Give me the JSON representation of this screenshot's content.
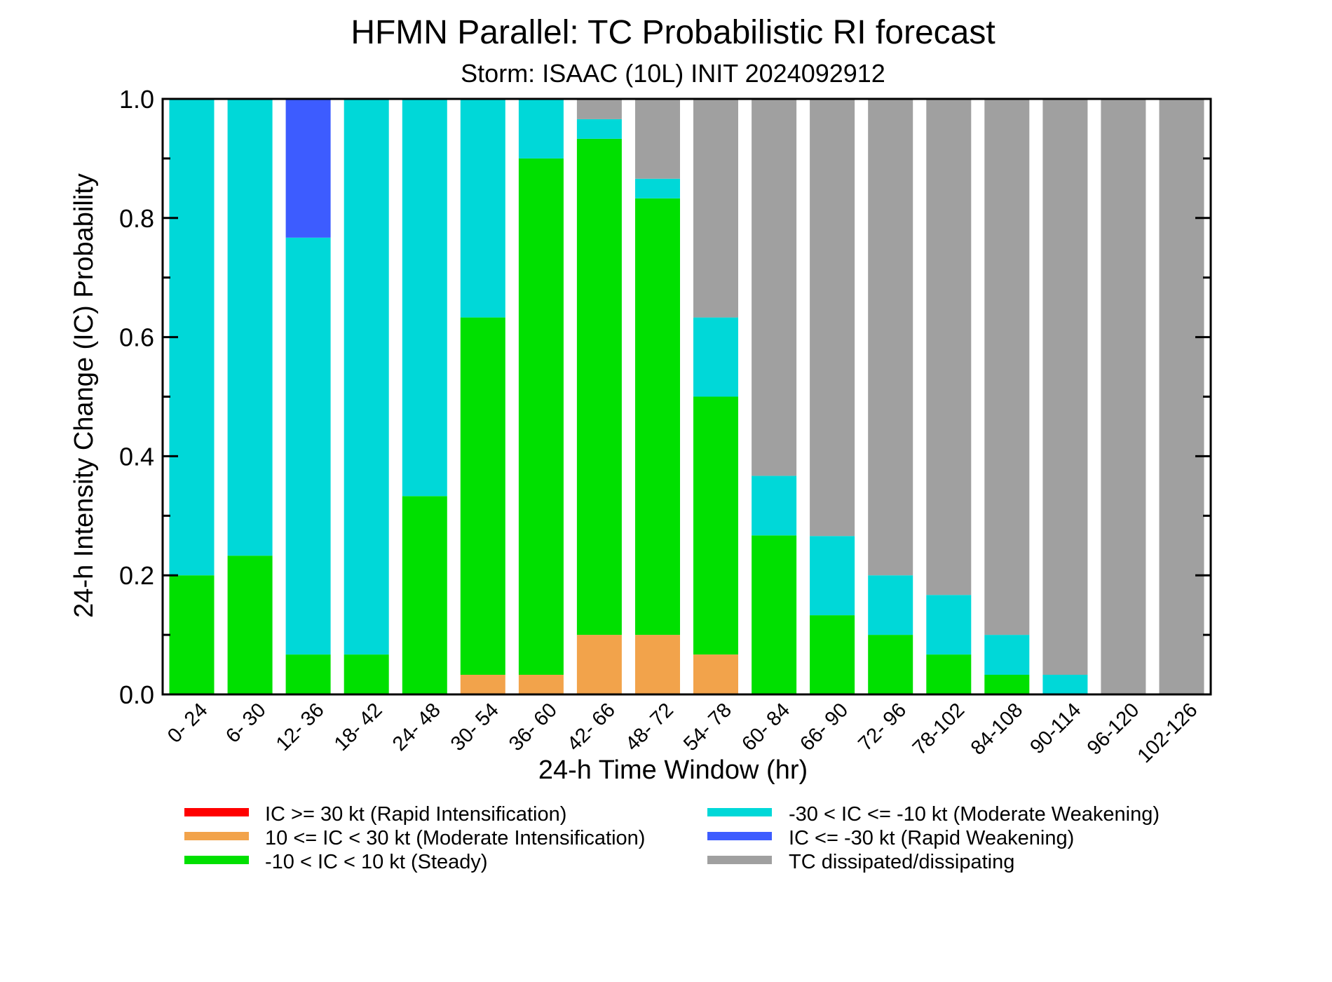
{
  "chart_data": {
    "type": "bar",
    "stacked": true,
    "title": "HFMN Parallel: TC Probabilistic RI forecast",
    "subtitle": "Storm: ISAAC (10L) INIT 2024092912",
    "xlabel": "24-h Time Window (hr)",
    "ylabel": "24-h Intensity Change (IC) Probability",
    "ylim": [
      0,
      1.0
    ],
    "yticks": [
      "0.0",
      "0.2",
      "0.4",
      "0.6",
      "0.8",
      "1.0"
    ],
    "categories": [
      "0- 24",
      "6- 30",
      "12- 36",
      "18- 42",
      "24- 48",
      "30- 54",
      "36- 60",
      "42- 66",
      "48- 72",
      "54- 78",
      "60- 84",
      "66- 90",
      "72- 96",
      "78-102",
      "84-108",
      "90-114",
      "96-120",
      "102-126"
    ],
    "series": [
      {
        "name": "IC >= 30 kt (Rapid Intensification)",
        "color": "#ff0000",
        "values": [
          0,
          0,
          0,
          0,
          0,
          0,
          0,
          0,
          0,
          0,
          0,
          0,
          0,
          0,
          0,
          0,
          0,
          0
        ]
      },
      {
        "name": "10 <= IC < 30 kt (Moderate Intensification)",
        "color": "#f2a34b",
        "values": [
          0,
          0,
          0,
          0,
          0,
          0.033,
          0.033,
          0.1,
          0.1,
          0.067,
          0,
          0,
          0,
          0,
          0,
          0,
          0,
          0
        ]
      },
      {
        "name": "-10 < IC < 10 kt (Steady)",
        "color": "#00e000",
        "values": [
          0.2,
          0.233,
          0.067,
          0.067,
          0.333,
          0.6,
          0.867,
          0.833,
          0.733,
          0.433,
          0.267,
          0.133,
          0.1,
          0.067,
          0.033,
          0,
          0,
          0
        ]
      },
      {
        "name": "-30 < IC <= -10 kt (Moderate Weakening)",
        "color": "#00d8d8",
        "values": [
          0.8,
          0.767,
          0.7,
          0.933,
          0.667,
          0.367,
          0.1,
          0.033,
          0.033,
          0.133,
          0.1,
          0.133,
          0.1,
          0.1,
          0.067,
          0.033,
          0,
          0
        ]
      },
      {
        "name": "IC <= -30 kt (Rapid Weakening)",
        "color": "#3d5cff",
        "values": [
          0,
          0,
          0.233,
          0,
          0,
          0,
          0,
          0,
          0,
          0,
          0,
          0,
          0,
          0,
          0,
          0,
          0,
          0
        ]
      },
      {
        "name": "TC dissipated/dissipating",
        "color": "#a0a0a0",
        "values": [
          0,
          0,
          0,
          0,
          0,
          0,
          0,
          0.034,
          0.134,
          0.367,
          0.633,
          0.734,
          0.8,
          0.833,
          0.9,
          0.967,
          1.0,
          1.0
        ]
      }
    ],
    "legend_position": "bottom",
    "grid": false
  }
}
